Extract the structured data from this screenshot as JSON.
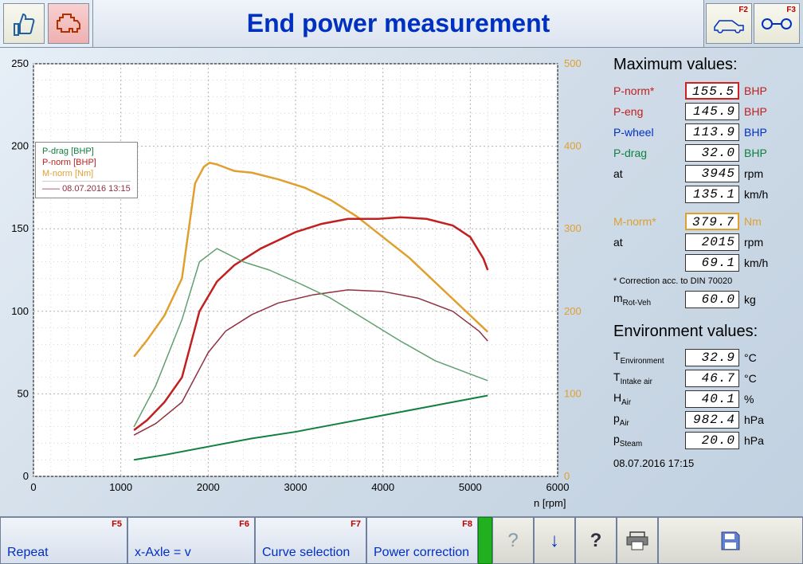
{
  "header": {
    "title": "End power measurement",
    "f2_label": "F2",
    "f3_label": "F3"
  },
  "chart": {
    "type": "line",
    "xlabel": "n [rpm]",
    "x_min": 0,
    "x_max": 6000,
    "x_tick": 1000,
    "y_left_min": 0,
    "y_left_max": 250,
    "y_left_tick": 50,
    "y_right_min": 0,
    "y_right_max": 500,
    "y_right_tick": 100,
    "y_right_color": "#e0a030",
    "plot_bg": "#ffffff",
    "grid_color": "#b0b0b0",
    "legend": {
      "items": [
        {
          "label": "P-drag [BHP]",
          "color": "#108040"
        },
        {
          "label": "P-norm [BHP]",
          "color": "#c02020"
        },
        {
          "label": "M-norm [Nm]",
          "color": "#e0a030"
        }
      ],
      "timestamp": "08.07.2016 13:15"
    },
    "series": [
      {
        "name": "P-drag",
        "color": "#108040",
        "width": 2,
        "axis": "left",
        "points": [
          [
            1150,
            10
          ],
          [
            1500,
            13
          ],
          [
            2000,
            18
          ],
          [
            2500,
            23
          ],
          [
            3000,
            27
          ],
          [
            3500,
            32
          ],
          [
            4000,
            37
          ],
          [
            4500,
            42
          ],
          [
            5000,
            47
          ],
          [
            5200,
            49
          ]
        ]
      },
      {
        "name": "M-norm",
        "color": "#e0a030",
        "width": 2.5,
        "axis": "right",
        "points": [
          [
            1150,
            145
          ],
          [
            1300,
            165
          ],
          [
            1500,
            195
          ],
          [
            1700,
            240
          ],
          [
            1850,
            355
          ],
          [
            1950,
            375
          ],
          [
            2015,
            380
          ],
          [
            2100,
            378
          ],
          [
            2300,
            370
          ],
          [
            2500,
            368
          ],
          [
            2800,
            360
          ],
          [
            3100,
            350
          ],
          [
            3400,
            335
          ],
          [
            3700,
            315
          ],
          [
            4000,
            290
          ],
          [
            4300,
            265
          ],
          [
            4600,
            235
          ],
          [
            4900,
            205
          ],
          [
            5100,
            185
          ],
          [
            5200,
            175
          ]
        ]
      },
      {
        "name": "P-norm",
        "color": "#c02020",
        "width": 2.5,
        "axis": "left",
        "points": [
          [
            1150,
            28
          ],
          [
            1300,
            34
          ],
          [
            1500,
            45
          ],
          [
            1700,
            60
          ],
          [
            1900,
            100
          ],
          [
            2100,
            118
          ],
          [
            2300,
            128
          ],
          [
            2600,
            138
          ],
          [
            3000,
            148
          ],
          [
            3300,
            153
          ],
          [
            3600,
            156
          ],
          [
            3945,
            156
          ],
          [
            4200,
            157
          ],
          [
            4500,
            156
          ],
          [
            4800,
            152
          ],
          [
            5000,
            145
          ],
          [
            5150,
            132
          ],
          [
            5200,
            125
          ]
        ]
      },
      {
        "name": "P-norm-prev",
        "color": "#903040",
        "width": 1.5,
        "axis": "left",
        "points": [
          [
            1150,
            25
          ],
          [
            1400,
            32
          ],
          [
            1700,
            45
          ],
          [
            2000,
            75
          ],
          [
            2200,
            88
          ],
          [
            2500,
            98
          ],
          [
            2800,
            105
          ],
          [
            3200,
            110
          ],
          [
            3600,
            113
          ],
          [
            4000,
            112
          ],
          [
            4400,
            108
          ],
          [
            4800,
            100
          ],
          [
            5100,
            88
          ],
          [
            5200,
            82
          ]
        ]
      },
      {
        "name": "P-drag-prev",
        "color": "#60a070",
        "width": 1.5,
        "axis": "left",
        "points": [
          [
            1150,
            30
          ],
          [
            1400,
            55
          ],
          [
            1700,
            95
          ],
          [
            1900,
            130
          ],
          [
            2100,
            138
          ],
          [
            2400,
            130
          ],
          [
            2700,
            125
          ],
          [
            3000,
            118
          ],
          [
            3400,
            108
          ],
          [
            3800,
            95
          ],
          [
            4200,
            82
          ],
          [
            4600,
            70
          ],
          [
            5000,
            62
          ],
          [
            5200,
            58
          ]
        ]
      }
    ]
  },
  "max_values": {
    "heading": "Maximum values:",
    "rows": [
      {
        "label": "P-norm*",
        "value": "155.5",
        "unit": "BHP",
        "color": "#c02020",
        "highlight": "red"
      },
      {
        "label": "P-eng",
        "value": "145.9",
        "unit": "BHP",
        "color": "#c02020"
      },
      {
        "label": "P-wheel",
        "value": "113.9",
        "unit": "BHP",
        "color": "#0030c0"
      },
      {
        "label": "P-drag",
        "value": "32.0",
        "unit": "BHP",
        "color": "#108040"
      },
      {
        "label": "at",
        "value": "3945",
        "unit": "rpm",
        "color": "#000"
      },
      {
        "label": "",
        "value": "135.1",
        "unit": "km/h",
        "color": "#000"
      }
    ],
    "torque_rows": [
      {
        "label": "M-norm*",
        "value": "379.7",
        "unit": "Nm",
        "color": "#e0a030",
        "highlight": "orange"
      },
      {
        "label": "at",
        "value": "2015",
        "unit": "rpm",
        "color": "#000"
      },
      {
        "label": "",
        "value": "69.1",
        "unit": "km/h",
        "color": "#000"
      }
    ],
    "note": "* Correction acc. to DIN 70020",
    "mass": {
      "label": "m",
      "sub": "Rot-Veh",
      "value": "60.0",
      "unit": "kg"
    }
  },
  "env_values": {
    "heading": "Environment values:",
    "rows": [
      {
        "label": "T",
        "sub": "Environment",
        "value": "32.9",
        "unit": "°C"
      },
      {
        "label": "T",
        "sub": "Intake air",
        "value": "46.7",
        "unit": "°C"
      },
      {
        "label": "H",
        "sub": "Air",
        "value": "40.1",
        "unit": "%"
      },
      {
        "label": "p",
        "sub": "Air",
        "value": "982.4",
        "unit": "hPa"
      },
      {
        "label": "p",
        "sub": "Steam",
        "value": "20.0",
        "unit": "hPa"
      }
    ]
  },
  "side_timestamp": "08.07.2016  17:15",
  "bottombar": {
    "f5": {
      "label": "Repeat",
      "key": "F5"
    },
    "f6": {
      "label": "x-Axle = v",
      "key": "F6"
    },
    "f7": {
      "label": "Curve selection",
      "key": "F7"
    },
    "f8": {
      "label": "Power correction",
      "key": "F8"
    }
  }
}
